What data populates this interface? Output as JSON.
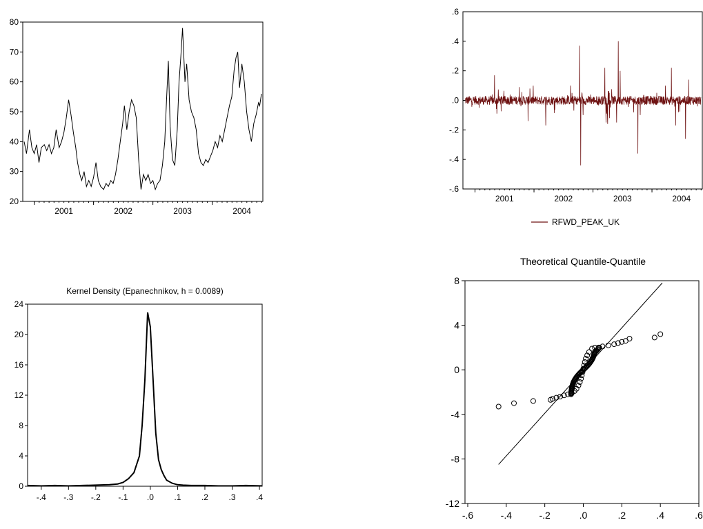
{
  "chart_data": [
    {
      "id": "price",
      "type": "line",
      "title": "",
      "ylim": [
        20,
        80
      ],
      "yticks": [
        20,
        30,
        40,
        50,
        60,
        70,
        80
      ],
      "xticks": [
        "2001",
        "2002",
        "2003",
        "2004"
      ],
      "x_start": 2000.83,
      "x_end": 2004.83,
      "series": [
        {
          "color": "#000000",
          "points": [
            [
              2000.83,
              40
            ],
            [
              2000.87,
              36
            ],
            [
              2000.92,
              44
            ],
            [
              2000.96,
              38
            ],
            [
              2001.0,
              36
            ],
            [
              2001.04,
              39
            ],
            [
              2001.08,
              33
            ],
            [
              2001.12,
              38
            ],
            [
              2001.17,
              39
            ],
            [
              2001.21,
              37
            ],
            [
              2001.25,
              39
            ],
            [
              2001.29,
              36
            ],
            [
              2001.33,
              38
            ],
            [
              2001.37,
              44
            ],
            [
              2001.42,
              38
            ],
            [
              2001.46,
              40
            ],
            [
              2001.5,
              43
            ],
            [
              2001.54,
              48
            ],
            [
              2001.58,
              54
            ],
            [
              2001.62,
              49
            ],
            [
              2001.66,
              43
            ],
            [
              2001.7,
              38
            ],
            [
              2001.73,
              33
            ],
            [
              2001.77,
              29
            ],
            [
              2001.8,
              27
            ],
            [
              2001.84,
              30
            ],
            [
              2001.88,
              25
            ],
            [
              2001.92,
              27
            ],
            [
              2001.96,
              25
            ],
            [
              2002.0,
              28
            ],
            [
              2002.04,
              33
            ],
            [
              2002.08,
              27
            ],
            [
              2002.12,
              25
            ],
            [
              2002.17,
              24
            ],
            [
              2002.21,
              26
            ],
            [
              2002.25,
              25
            ],
            [
              2002.29,
              27
            ],
            [
              2002.33,
              26
            ],
            [
              2002.37,
              29
            ],
            [
              2002.41,
              34
            ],
            [
              2002.45,
              40
            ],
            [
              2002.49,
              46
            ],
            [
              2002.52,
              52
            ],
            [
              2002.56,
              44
            ],
            [
              2002.6,
              50
            ],
            [
              2002.64,
              54
            ],
            [
              2002.68,
              52
            ],
            [
              2002.72,
              48
            ],
            [
              2002.76,
              34
            ],
            [
              2002.8,
              24
            ],
            [
              2002.84,
              29
            ],
            [
              2002.88,
              27
            ],
            [
              2002.92,
              29
            ],
            [
              2002.96,
              26
            ],
            [
              2003.0,
              27
            ],
            [
              2003.04,
              24
            ],
            [
              2003.08,
              26
            ],
            [
              2003.12,
              27
            ],
            [
              2003.16,
              32
            ],
            [
              2003.2,
              40
            ],
            [
              2003.23,
              54
            ],
            [
              2003.26,
              67
            ],
            [
              2003.29,
              45
            ],
            [
              2003.33,
              34
            ],
            [
              2003.37,
              32
            ],
            [
              2003.41,
              44
            ],
            [
              2003.44,
              60
            ],
            [
              2003.47,
              68
            ],
            [
              2003.5,
              78
            ],
            [
              2003.54,
              60
            ],
            [
              2003.57,
              66
            ],
            [
              2003.61,
              54
            ],
            [
              2003.65,
              50
            ],
            [
              2003.69,
              48
            ],
            [
              2003.73,
              44
            ],
            [
              2003.77,
              36
            ],
            [
              2003.81,
              33
            ],
            [
              2003.85,
              32
            ],
            [
              2003.89,
              34
            ],
            [
              2003.93,
              33
            ],
            [
              2003.97,
              35
            ],
            [
              2004.01,
              37
            ],
            [
              2004.05,
              40
            ],
            [
              2004.09,
              38
            ],
            [
              2004.13,
              42
            ],
            [
              2004.17,
              40
            ],
            [
              2004.21,
              44
            ],
            [
              2004.25,
              48
            ],
            [
              2004.29,
              52
            ],
            [
              2004.33,
              55
            ],
            [
              2004.37,
              64
            ],
            [
              2004.4,
              68
            ],
            [
              2004.43,
              70
            ],
            [
              2004.46,
              58
            ],
            [
              2004.5,
              66
            ],
            [
              2004.54,
              60
            ],
            [
              2004.58,
              50
            ],
            [
              2004.62,
              44
            ],
            [
              2004.66,
              40
            ],
            [
              2004.7,
              46
            ],
            [
              2004.74,
              49
            ],
            [
              2004.78,
              53
            ],
            [
              2004.8,
              52
            ],
            [
              2004.83,
              56
            ]
          ]
        }
      ]
    },
    {
      "id": "returns",
      "type": "line",
      "title": "",
      "ylim": [
        -0.6,
        0.6
      ],
      "yticks": [
        -0.6,
        -0.4,
        -0.2,
        0.0,
        0.2,
        0.4,
        0.6
      ],
      "ytick_labels": [
        "-.6",
        "-.4",
        "-.2",
        ".0",
        ".2",
        ".4",
        ".6"
      ],
      "xticks": [
        "2001",
        "2002",
        "2003",
        "2004"
      ],
      "x_start": 2000.83,
      "x_end": 2004.83,
      "legend": [
        "RFWD_PEAK_UK"
      ],
      "legend_position": "bottom",
      "series": [
        {
          "name": "RFWD_PEAK_UK",
          "color": "#6e1212",
          "spikes": [
            [
              2001.33,
              0.17
            ],
            [
              2001.37,
              -0.09
            ],
            [
              2001.75,
              0.09
            ],
            [
              2001.9,
              -0.14
            ],
            [
              2001.93,
              0.08
            ],
            [
              2002.2,
              -0.17
            ],
            [
              2002.62,
              0.1
            ],
            [
              2002.77,
              0.37
            ],
            [
              2002.79,
              -0.44
            ],
            [
              2002.83,
              -0.1
            ],
            [
              2003.2,
              0.22
            ],
            [
              2003.22,
              -0.15
            ],
            [
              2003.25,
              -0.16
            ],
            [
              2003.28,
              -0.12
            ],
            [
              2003.4,
              -0.15
            ],
            [
              2003.43,
              0.4
            ],
            [
              2003.46,
              0.2
            ],
            [
              2003.76,
              -0.36
            ],
            [
              2003.8,
              -0.1
            ],
            [
              2004.33,
              0.22
            ],
            [
              2004.4,
              -0.17
            ],
            [
              2004.45,
              -0.08
            ],
            [
              2004.57,
              -0.26
            ],
            [
              2004.62,
              0.14
            ]
          ]
        }
      ]
    },
    {
      "id": "kernel",
      "type": "line",
      "title": "Kernel Density (Epanechnikov, h =  0.0089)",
      "xlim": [
        -0.45,
        0.41
      ],
      "ylim": [
        0,
        24
      ],
      "xticks": [
        -0.4,
        -0.3,
        -0.2,
        -0.1,
        0.0,
        0.1,
        0.2,
        0.3,
        0.4
      ],
      "xtick_labels": [
        "-.4",
        "-.3",
        "-.2",
        "-.1",
        ".0",
        ".1",
        ".2",
        ".3",
        ".4"
      ],
      "yticks": [
        0,
        4,
        8,
        12,
        16,
        20,
        24
      ],
      "series": [
        {
          "color": "#000000",
          "x": [
            -0.45,
            -0.4,
            -0.35,
            -0.3,
            -0.25,
            -0.2,
            -0.15,
            -0.12,
            -0.1,
            -0.08,
            -0.06,
            -0.04,
            -0.03,
            -0.02,
            -0.01,
            0.0,
            0.01,
            0.02,
            0.03,
            0.04,
            0.05,
            0.06,
            0.08,
            0.1,
            0.12,
            0.15,
            0.2,
            0.25,
            0.3,
            0.35,
            0.41
          ],
          "y": [
            0.1,
            0.05,
            0.1,
            0.05,
            0.1,
            0.15,
            0.2,
            0.3,
            0.5,
            1.0,
            1.8,
            4.0,
            8.0,
            14.0,
            22.9,
            21.0,
            14.0,
            7.0,
            3.5,
            2.2,
            1.4,
            0.8,
            0.4,
            0.2,
            0.15,
            0.1,
            0.1,
            0.05,
            0.05,
            0.1,
            0.05
          ]
        }
      ]
    },
    {
      "id": "qq",
      "type": "scatter",
      "title": "Theoretical Quantile-Quantile",
      "xlim": [
        -0.6,
        0.6
      ],
      "ylim": [
        -12,
        8
      ],
      "xticks": [
        -0.6,
        -0.4,
        -0.2,
        0.0,
        0.2,
        0.4,
        0.6
      ],
      "xtick_labels": [
        "-.6",
        "-.4",
        "-.2",
        ".0",
        ".2",
        ".4",
        ".6"
      ],
      "yticks": [
        -12,
        -8,
        -4,
        0,
        4,
        8
      ],
      "reference_line": {
        "x": [
          -0.44,
          0.41
        ],
        "y": [
          -8.5,
          7.8
        ]
      },
      "points": [
        [
          -0.44,
          -3.3
        ],
        [
          -0.36,
          -3.0
        ],
        [
          -0.26,
          -2.8
        ],
        [
          -0.17,
          -2.7
        ],
        [
          -0.16,
          -2.6
        ],
        [
          -0.14,
          -2.5
        ],
        [
          -0.12,
          -2.4
        ],
        [
          -0.1,
          -2.3
        ],
        [
          -0.08,
          -2.2
        ],
        [
          -0.06,
          -2.1
        ],
        [
          -0.045,
          -1.9
        ],
        [
          -0.035,
          -1.7
        ],
        [
          -0.025,
          -1.4
        ],
        [
          -0.018,
          -1.1
        ],
        [
          -0.012,
          -0.8
        ],
        [
          -0.008,
          -0.5
        ],
        [
          -0.004,
          -0.2
        ],
        [
          0.0,
          0.1
        ],
        [
          0.004,
          0.4
        ],
        [
          0.008,
          0.7
        ],
        [
          0.013,
          1.0
        ],
        [
          0.02,
          1.3
        ],
        [
          0.03,
          1.6
        ],
        [
          0.045,
          1.9
        ],
        [
          0.06,
          2.0
        ],
        [
          0.08,
          2.0
        ],
        [
          0.1,
          2.1
        ],
        [
          0.13,
          2.2
        ],
        [
          0.16,
          2.3
        ],
        [
          0.18,
          2.4
        ],
        [
          0.2,
          2.5
        ],
        [
          0.22,
          2.6
        ],
        [
          0.24,
          2.8
        ],
        [
          0.37,
          2.9
        ],
        [
          0.4,
          3.2
        ]
      ]
    }
  ]
}
